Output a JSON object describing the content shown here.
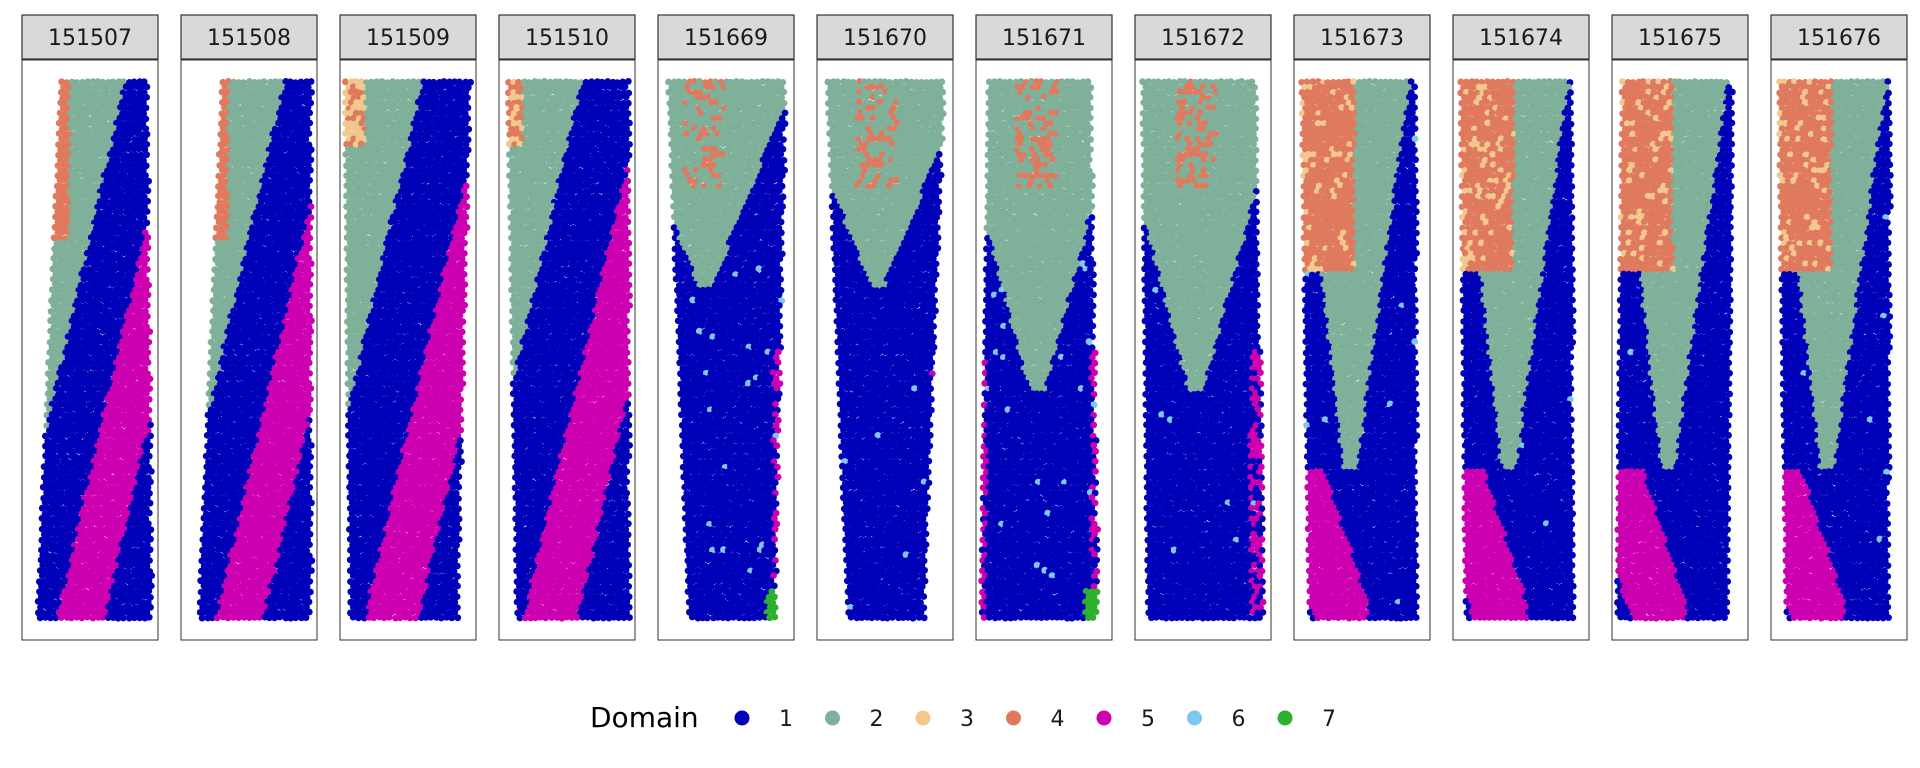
{
  "chart_data": {
    "type": "scatter",
    "title": "",
    "xlabel": "",
    "ylabel": "",
    "description_kind": "faceted spatial scatter of spots colored by domain",
    "facets": [
      "151507",
      "151508",
      "151509",
      "151510",
      "151669",
      "151670",
      "151671",
      "151672",
      "151673",
      "151674",
      "151675",
      "151676"
    ],
    "legend": {
      "title": "Domain",
      "position": "bottom",
      "entries": [
        {
          "label": "1",
          "color": "#0000B8"
        },
        {
          "label": "2",
          "color": "#7FB09A"
        },
        {
          "label": "3",
          "color": "#F2C88C"
        },
        {
          "label": "4",
          "color": "#E07A5F"
        },
        {
          "label": "5",
          "color": "#CC00B0"
        },
        {
          "label": "6",
          "color": "#7EC8F0"
        },
        {
          "label": "7",
          "color": "#2DB02D"
        }
      ]
    }
  }
}
